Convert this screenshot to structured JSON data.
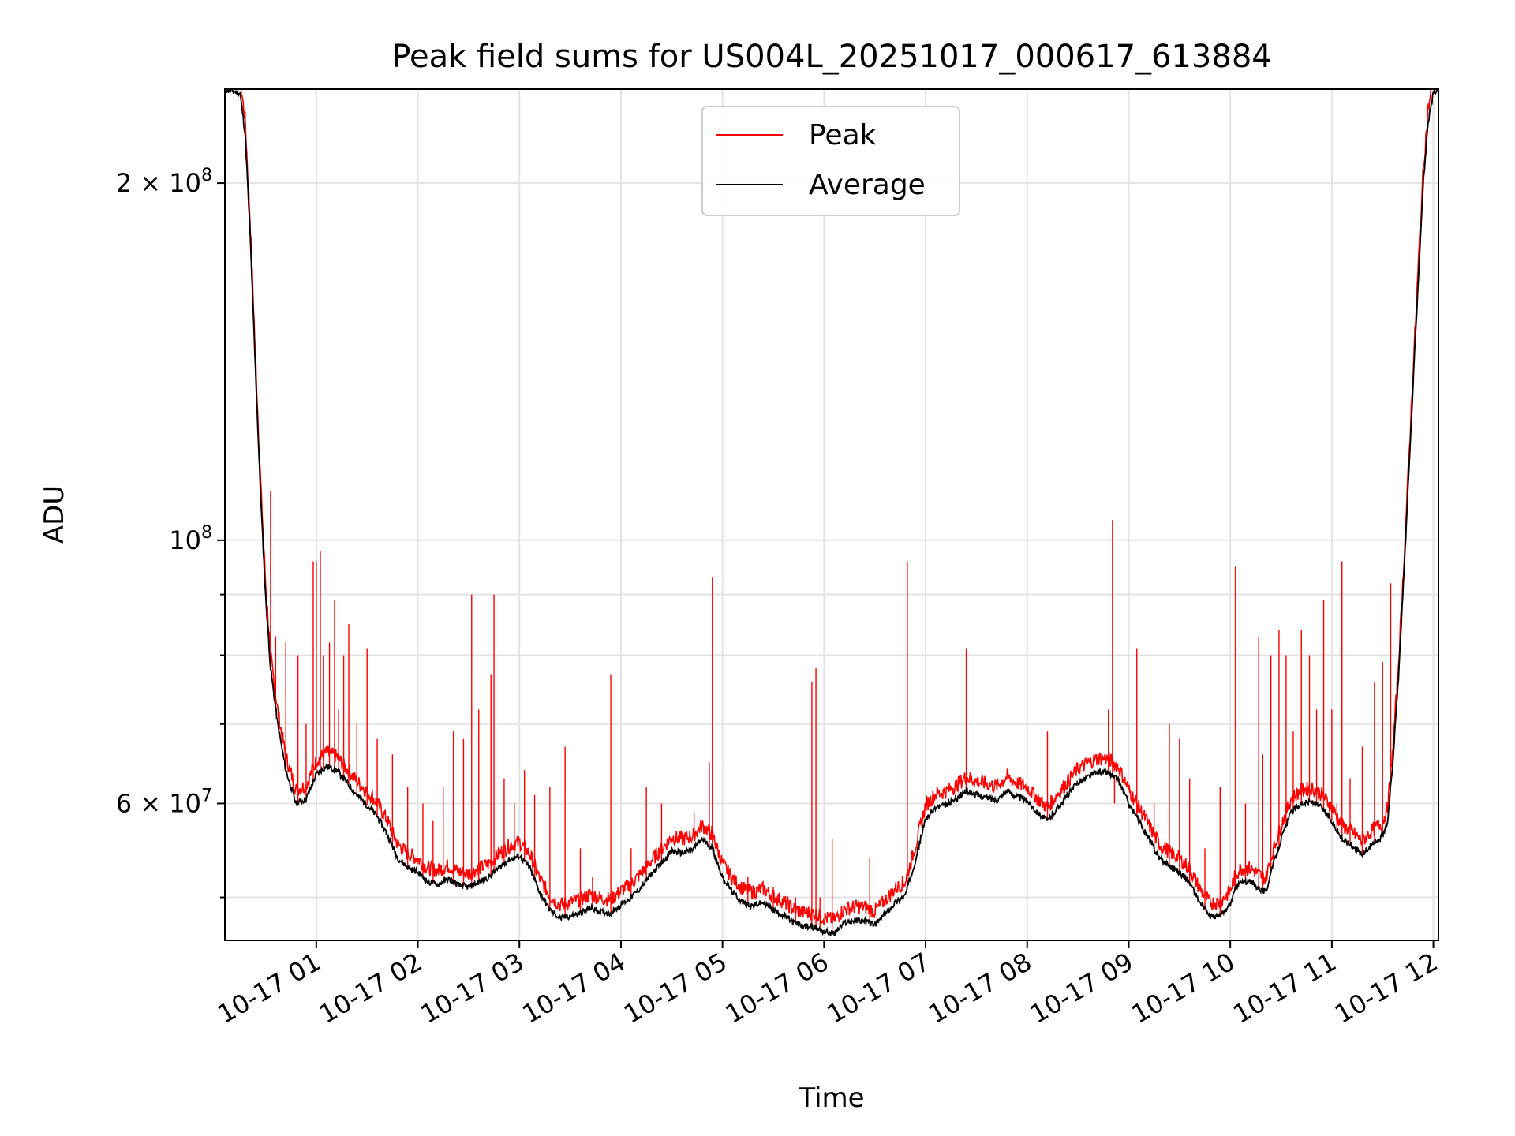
{
  "chart_data": {
    "type": "line",
    "title": "Peak field sums for US004L_20251017_000617_613884",
    "xlabel": "Time",
    "ylabel": "ADU",
    "yscale": "log",
    "ylim": [
      46000000,
      240000000
    ],
    "xlim_hours": [
      0.1,
      12.05
    ],
    "grid": true,
    "legend_position": "top-center",
    "x_ticks": [
      {
        "hour": 1,
        "label": "10-17 01"
      },
      {
        "hour": 2,
        "label": "10-17 02"
      },
      {
        "hour": 3,
        "label": "10-17 03"
      },
      {
        "hour": 4,
        "label": "10-17 04"
      },
      {
        "hour": 5,
        "label": "10-17 05"
      },
      {
        "hour": 6,
        "label": "10-17 06"
      },
      {
        "hour": 7,
        "label": "10-17 07"
      },
      {
        "hour": 8,
        "label": "10-17 08"
      },
      {
        "hour": 9,
        "label": "10-17 09"
      },
      {
        "hour": 10,
        "label": "10-17 10"
      },
      {
        "hour": 11,
        "label": "10-17 11"
      },
      {
        "hour": 12,
        "label": "10-17 12"
      }
    ],
    "y_major_ticks": [
      {
        "value": 60000000,
        "mantissa": "6",
        "exp": "7"
      },
      {
        "value": 100000000,
        "mantissa": "",
        "exp": "8"
      },
      {
        "value": 200000000,
        "mantissa": "2",
        "exp": "8"
      }
    ],
    "y_minor_ticks": [
      50000000,
      70000000,
      80000000,
      90000000
    ],
    "series": [
      {
        "name": "Peak",
        "color": "#ff0000",
        "spikes": [
          [
            0.55,
            110000000
          ],
          [
            0.6,
            83000000
          ],
          [
            0.7,
            82000000
          ],
          [
            0.82,
            80000000
          ],
          [
            0.9,
            70000000
          ],
          [
            0.97,
            96000000
          ],
          [
            1.0,
            96000000
          ],
          [
            1.04,
            98000000
          ],
          [
            1.07,
            80000000
          ],
          [
            1.13,
            82000000
          ],
          [
            1.18,
            89000000
          ],
          [
            1.22,
            72000000
          ],
          [
            1.27,
            80000000
          ],
          [
            1.32,
            85000000
          ],
          [
            1.4,
            70000000
          ],
          [
            1.5,
            81000000
          ],
          [
            1.6,
            68000000
          ],
          [
            1.75,
            66000000
          ],
          [
            1.9,
            62000000
          ],
          [
            2.05,
            60000000
          ],
          [
            2.15,
            58000000
          ],
          [
            2.25,
            62000000
          ],
          [
            2.35,
            69000000
          ],
          [
            2.45,
            68000000
          ],
          [
            2.53,
            90000000
          ],
          [
            2.6,
            72000000
          ],
          [
            2.72,
            77000000
          ],
          [
            2.75,
            90000000
          ],
          [
            2.85,
            63000000
          ],
          [
            2.95,
            60000000
          ],
          [
            3.05,
            64000000
          ],
          [
            3.15,
            61000000
          ],
          [
            3.3,
            62000000
          ],
          [
            3.45,
            67000000
          ],
          [
            3.6,
            55000000
          ],
          [
            3.72,
            52000000
          ],
          [
            3.9,
            77000000
          ],
          [
            4.1,
            55000000
          ],
          [
            4.25,
            62000000
          ],
          [
            4.4,
            60000000
          ],
          [
            4.72,
            59000000
          ],
          [
            4.87,
            65000000
          ],
          [
            4.9,
            93000000
          ],
          [
            5.25,
            52000000
          ],
          [
            5.5,
            51000000
          ],
          [
            5.72,
            50000000
          ],
          [
            5.88,
            76000000
          ],
          [
            5.92,
            78000000
          ],
          [
            5.96,
            50000000
          ],
          [
            6.08,
            56000000
          ],
          [
            6.45,
            54000000
          ],
          [
            6.82,
            96000000
          ],
          [
            7.4,
            81000000
          ],
          [
            8.2,
            69000000
          ],
          [
            8.8,
            72000000
          ],
          [
            8.84,
            104000000
          ],
          [
            8.86,
            60000000
          ],
          [
            9.08,
            81000000
          ],
          [
            9.25,
            60000000
          ],
          [
            9.4,
            70000000
          ],
          [
            9.5,
            68000000
          ],
          [
            9.6,
            63000000
          ],
          [
            9.75,
            55000000
          ],
          [
            9.9,
            62000000
          ],
          [
            10.05,
            95000000
          ],
          [
            10.15,
            60000000
          ],
          [
            10.28,
            83000000
          ],
          [
            10.32,
            66000000
          ],
          [
            10.4,
            80000000
          ],
          [
            10.48,
            84000000
          ],
          [
            10.55,
            80000000
          ],
          [
            10.62,
            69000000
          ],
          [
            10.7,
            84000000
          ],
          [
            10.78,
            80000000
          ],
          [
            10.85,
            72000000
          ],
          [
            10.92,
            89000000
          ],
          [
            11.0,
            72000000
          ],
          [
            11.05,
            60000000
          ],
          [
            11.1,
            96000000
          ],
          [
            11.18,
            63000000
          ],
          [
            11.3,
            67000000
          ],
          [
            11.42,
            76000000
          ],
          [
            11.5,
            79000000
          ],
          [
            11.58,
            92000000
          ]
        ]
      },
      {
        "name": "Average",
        "color": "#000000",
        "points": [
          [
            0.1,
            240000000
          ],
          [
            0.25,
            238000000
          ],
          [
            0.3,
            220000000
          ],
          [
            0.35,
            180000000
          ],
          [
            0.4,
            140000000
          ],
          [
            0.45,
            110000000
          ],
          [
            0.5,
            90000000
          ],
          [
            0.55,
            78000000
          ],
          [
            0.62,
            70000000
          ],
          [
            0.7,
            64000000
          ],
          [
            0.8,
            60000000
          ],
          [
            0.9,
            60500000
          ],
          [
            1.0,
            63500000
          ],
          [
            1.1,
            64500000
          ],
          [
            1.2,
            64000000
          ],
          [
            1.3,
            62500000
          ],
          [
            1.4,
            61000000
          ],
          [
            1.5,
            59800000
          ],
          [
            1.6,
            58500000
          ],
          [
            1.7,
            56500000
          ],
          [
            1.8,
            54000000
          ],
          [
            1.9,
            53000000
          ],
          [
            2.0,
            52500000
          ],
          [
            2.1,
            51500000
          ],
          [
            2.2,
            51300000
          ],
          [
            2.3,
            51800000
          ],
          [
            2.4,
            51200000
          ],
          [
            2.5,
            51000000
          ],
          [
            2.6,
            51500000
          ],
          [
            2.7,
            52000000
          ],
          [
            2.8,
            53000000
          ],
          [
            2.9,
            53800000
          ],
          [
            3.0,
            54200000
          ],
          [
            3.1,
            53000000
          ],
          [
            3.2,
            50500000
          ],
          [
            3.3,
            48800000
          ],
          [
            3.4,
            48000000
          ],
          [
            3.5,
            48200000
          ],
          [
            3.6,
            48500000
          ],
          [
            3.7,
            49000000
          ],
          [
            3.8,
            48600000
          ],
          [
            3.9,
            48500000
          ],
          [
            4.0,
            49300000
          ],
          [
            4.1,
            50000000
          ],
          [
            4.2,
            51000000
          ],
          [
            4.3,
            52300000
          ],
          [
            4.4,
            53500000
          ],
          [
            4.5,
            54700000
          ],
          [
            4.6,
            54500000
          ],
          [
            4.7,
            54800000
          ],
          [
            4.8,
            56000000
          ],
          [
            4.9,
            55000000
          ],
          [
            5.0,
            52000000
          ],
          [
            5.1,
            50500000
          ],
          [
            5.2,
            49500000
          ],
          [
            5.3,
            49200000
          ],
          [
            5.4,
            49500000
          ],
          [
            5.5,
            48800000
          ],
          [
            5.6,
            48300000
          ],
          [
            5.7,
            47600000
          ],
          [
            5.8,
            47300000
          ],
          [
            5.9,
            47200000
          ],
          [
            6.0,
            46800000
          ],
          [
            6.1,
            46600000
          ],
          [
            6.2,
            47600000
          ],
          [
            6.3,
            47800000
          ],
          [
            6.4,
            47800000
          ],
          [
            6.5,
            47400000
          ],
          [
            6.6,
            48400000
          ],
          [
            6.7,
            49500000
          ],
          [
            6.8,
            50200000
          ],
          [
            6.9,
            53800000
          ],
          [
            7.0,
            58200000
          ],
          [
            7.1,
            59500000
          ],
          [
            7.2,
            59800000
          ],
          [
            7.3,
            60500000
          ],
          [
            7.4,
            61500000
          ],
          [
            7.5,
            61000000
          ],
          [
            7.6,
            60700000
          ],
          [
            7.7,
            60400000
          ],
          [
            7.8,
            61500000
          ],
          [
            7.9,
            60800000
          ],
          [
            8.0,
            60300000
          ],
          [
            8.1,
            59000000
          ],
          [
            8.2,
            58000000
          ],
          [
            8.3,
            59500000
          ],
          [
            8.4,
            61000000
          ],
          [
            8.5,
            62500000
          ],
          [
            8.6,
            63200000
          ],
          [
            8.7,
            63800000
          ],
          [
            8.8,
            63700000
          ],
          [
            8.9,
            62700000
          ],
          [
            9.0,
            60000000
          ],
          [
            9.1,
            58000000
          ],
          [
            9.2,
            56000000
          ],
          [
            9.3,
            54000000
          ],
          [
            9.4,
            53200000
          ],
          [
            9.5,
            52500000
          ],
          [
            9.6,
            51500000
          ],
          [
            9.7,
            49500000
          ],
          [
            9.8,
            48200000
          ],
          [
            9.9,
            48200000
          ],
          [
            10.0,
            49300000
          ],
          [
            10.05,
            50800000
          ],
          [
            10.1,
            51500000
          ],
          [
            10.2,
            51500000
          ],
          [
            10.3,
            50800000
          ],
          [
            10.35,
            50500000
          ],
          [
            10.4,
            52500000
          ],
          [
            10.5,
            56000000
          ],
          [
            10.6,
            59000000
          ],
          [
            10.7,
            60000000
          ],
          [
            10.8,
            60200000
          ],
          [
            10.9,
            59500000
          ],
          [
            11.0,
            58000000
          ],
          [
            11.1,
            56000000
          ],
          [
            11.2,
            55300000
          ],
          [
            11.3,
            54300000
          ],
          [
            11.4,
            55500000
          ],
          [
            11.5,
            56300000
          ],
          [
            11.55,
            58000000
          ],
          [
            11.6,
            65000000
          ],
          [
            11.65,
            75000000
          ],
          [
            11.7,
            90000000
          ],
          [
            11.75,
            110000000
          ],
          [
            11.8,
            135000000
          ],
          [
            11.85,
            165000000
          ],
          [
            11.9,
            200000000
          ],
          [
            11.95,
            225000000
          ],
          [
            12.0,
            238000000
          ],
          [
            12.05,
            240000000
          ]
        ]
      }
    ]
  }
}
